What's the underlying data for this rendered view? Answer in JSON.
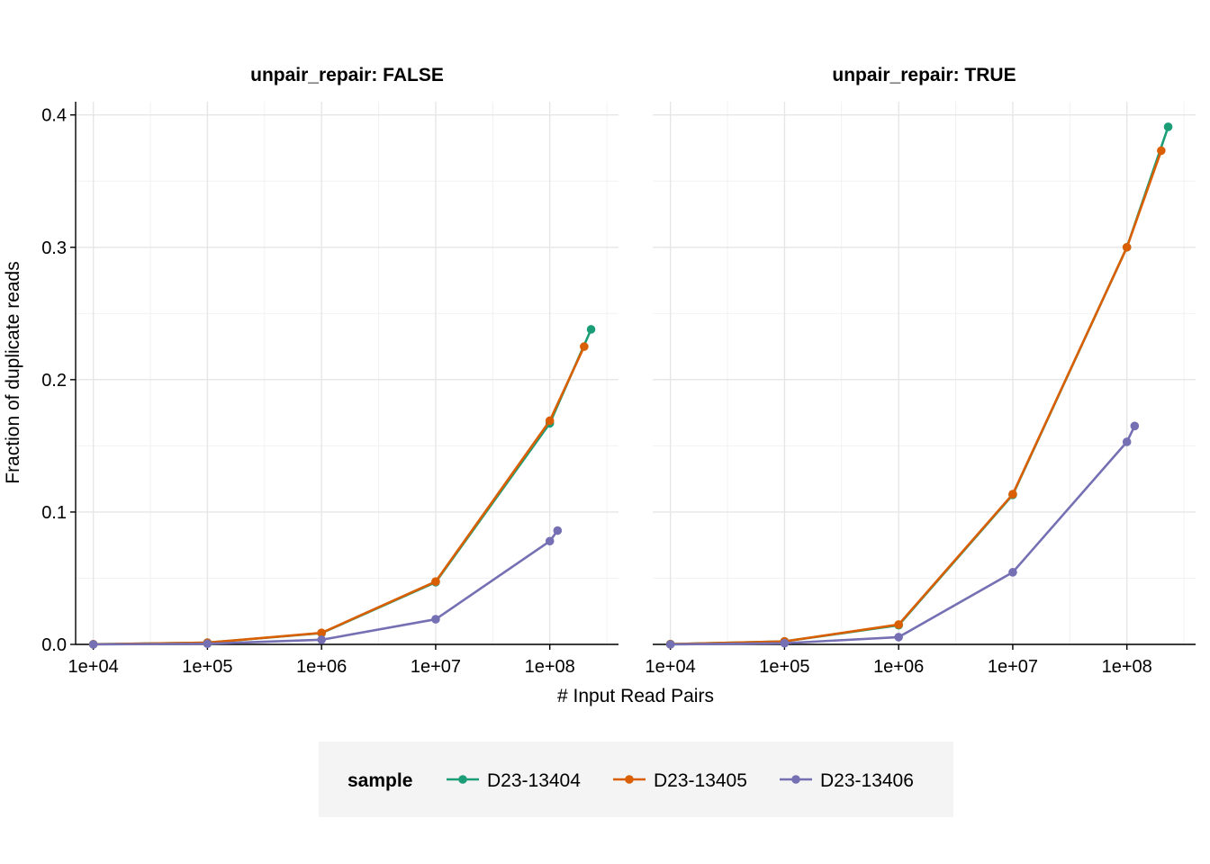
{
  "chart_data": {
    "type": "line",
    "xlabel": "# Input Read Pairs",
    "ylabel": "Fraction of duplicate reads",
    "x_scale": "log10",
    "xlim": [
      7000,
      400000000
    ],
    "ylim": [
      0,
      0.41
    ],
    "x_ticks": [
      10000,
      100000,
      1000000,
      10000000,
      100000000
    ],
    "x_tick_labels": [
      "1e+04",
      "1e+05",
      "1e+06",
      "1e+07",
      "1e+08"
    ],
    "y_ticks": [
      0,
      0.1,
      0.2,
      0.3,
      0.4
    ],
    "y_tick_labels": [
      "0.0",
      "0.1",
      "0.2",
      "0.3",
      "0.4"
    ],
    "grid": true,
    "legend": {
      "title": "sample",
      "placement": "bottom"
    },
    "colors": {
      "D23-13404": "#1b9e77",
      "D23-13405": "#d95f02",
      "D23-13406": "#7570b3",
      "legend_background": "#f4f4f4"
    },
    "facets": [
      {
        "title": "unpair_repair: FALSE",
        "series": [
          {
            "name": "D23-13404",
            "x": [
              10000,
              100000,
              1000000,
              10000000,
              100000000,
              230000000
            ],
            "y": [
              0.0001,
              0.0013,
              0.0085,
              0.047,
              0.167,
              0.238
            ]
          },
          {
            "name": "D23-13405",
            "x": [
              10000,
              100000,
              1000000,
              10000000,
              100000000,
              200000000
            ],
            "y": [
              0.0001,
              0.0013,
              0.0087,
              0.0475,
              0.169,
              0.225
            ]
          },
          {
            "name": "D23-13406",
            "x": [
              10000,
              100000,
              1000000,
              10000000,
              100000000,
              117000000
            ],
            "y": [
              0.0,
              0.0005,
              0.0035,
              0.019,
              0.078,
              0.086
            ]
          }
        ]
      },
      {
        "title": "unpair_repair: TRUE",
        "series": [
          {
            "name": "D23-13404",
            "x": [
              10000,
              100000,
              1000000,
              10000000,
              100000000,
              230000000
            ],
            "y": [
              0.0002,
              0.0023,
              0.0145,
              0.113,
              0.3,
              0.391
            ]
          },
          {
            "name": "D23-13405",
            "x": [
              10000,
              100000,
              1000000,
              10000000,
              100000000,
              200000000
            ],
            "y": [
              0.0002,
              0.0023,
              0.015,
              0.1135,
              0.3,
              0.373
            ]
          },
          {
            "name": "D23-13406",
            "x": [
              10000,
              100000,
              1000000,
              10000000,
              100000000,
              117000000
            ],
            "y": [
              0.0,
              0.0009,
              0.0055,
              0.0545,
              0.153,
              0.165
            ]
          }
        ]
      }
    ]
  }
}
